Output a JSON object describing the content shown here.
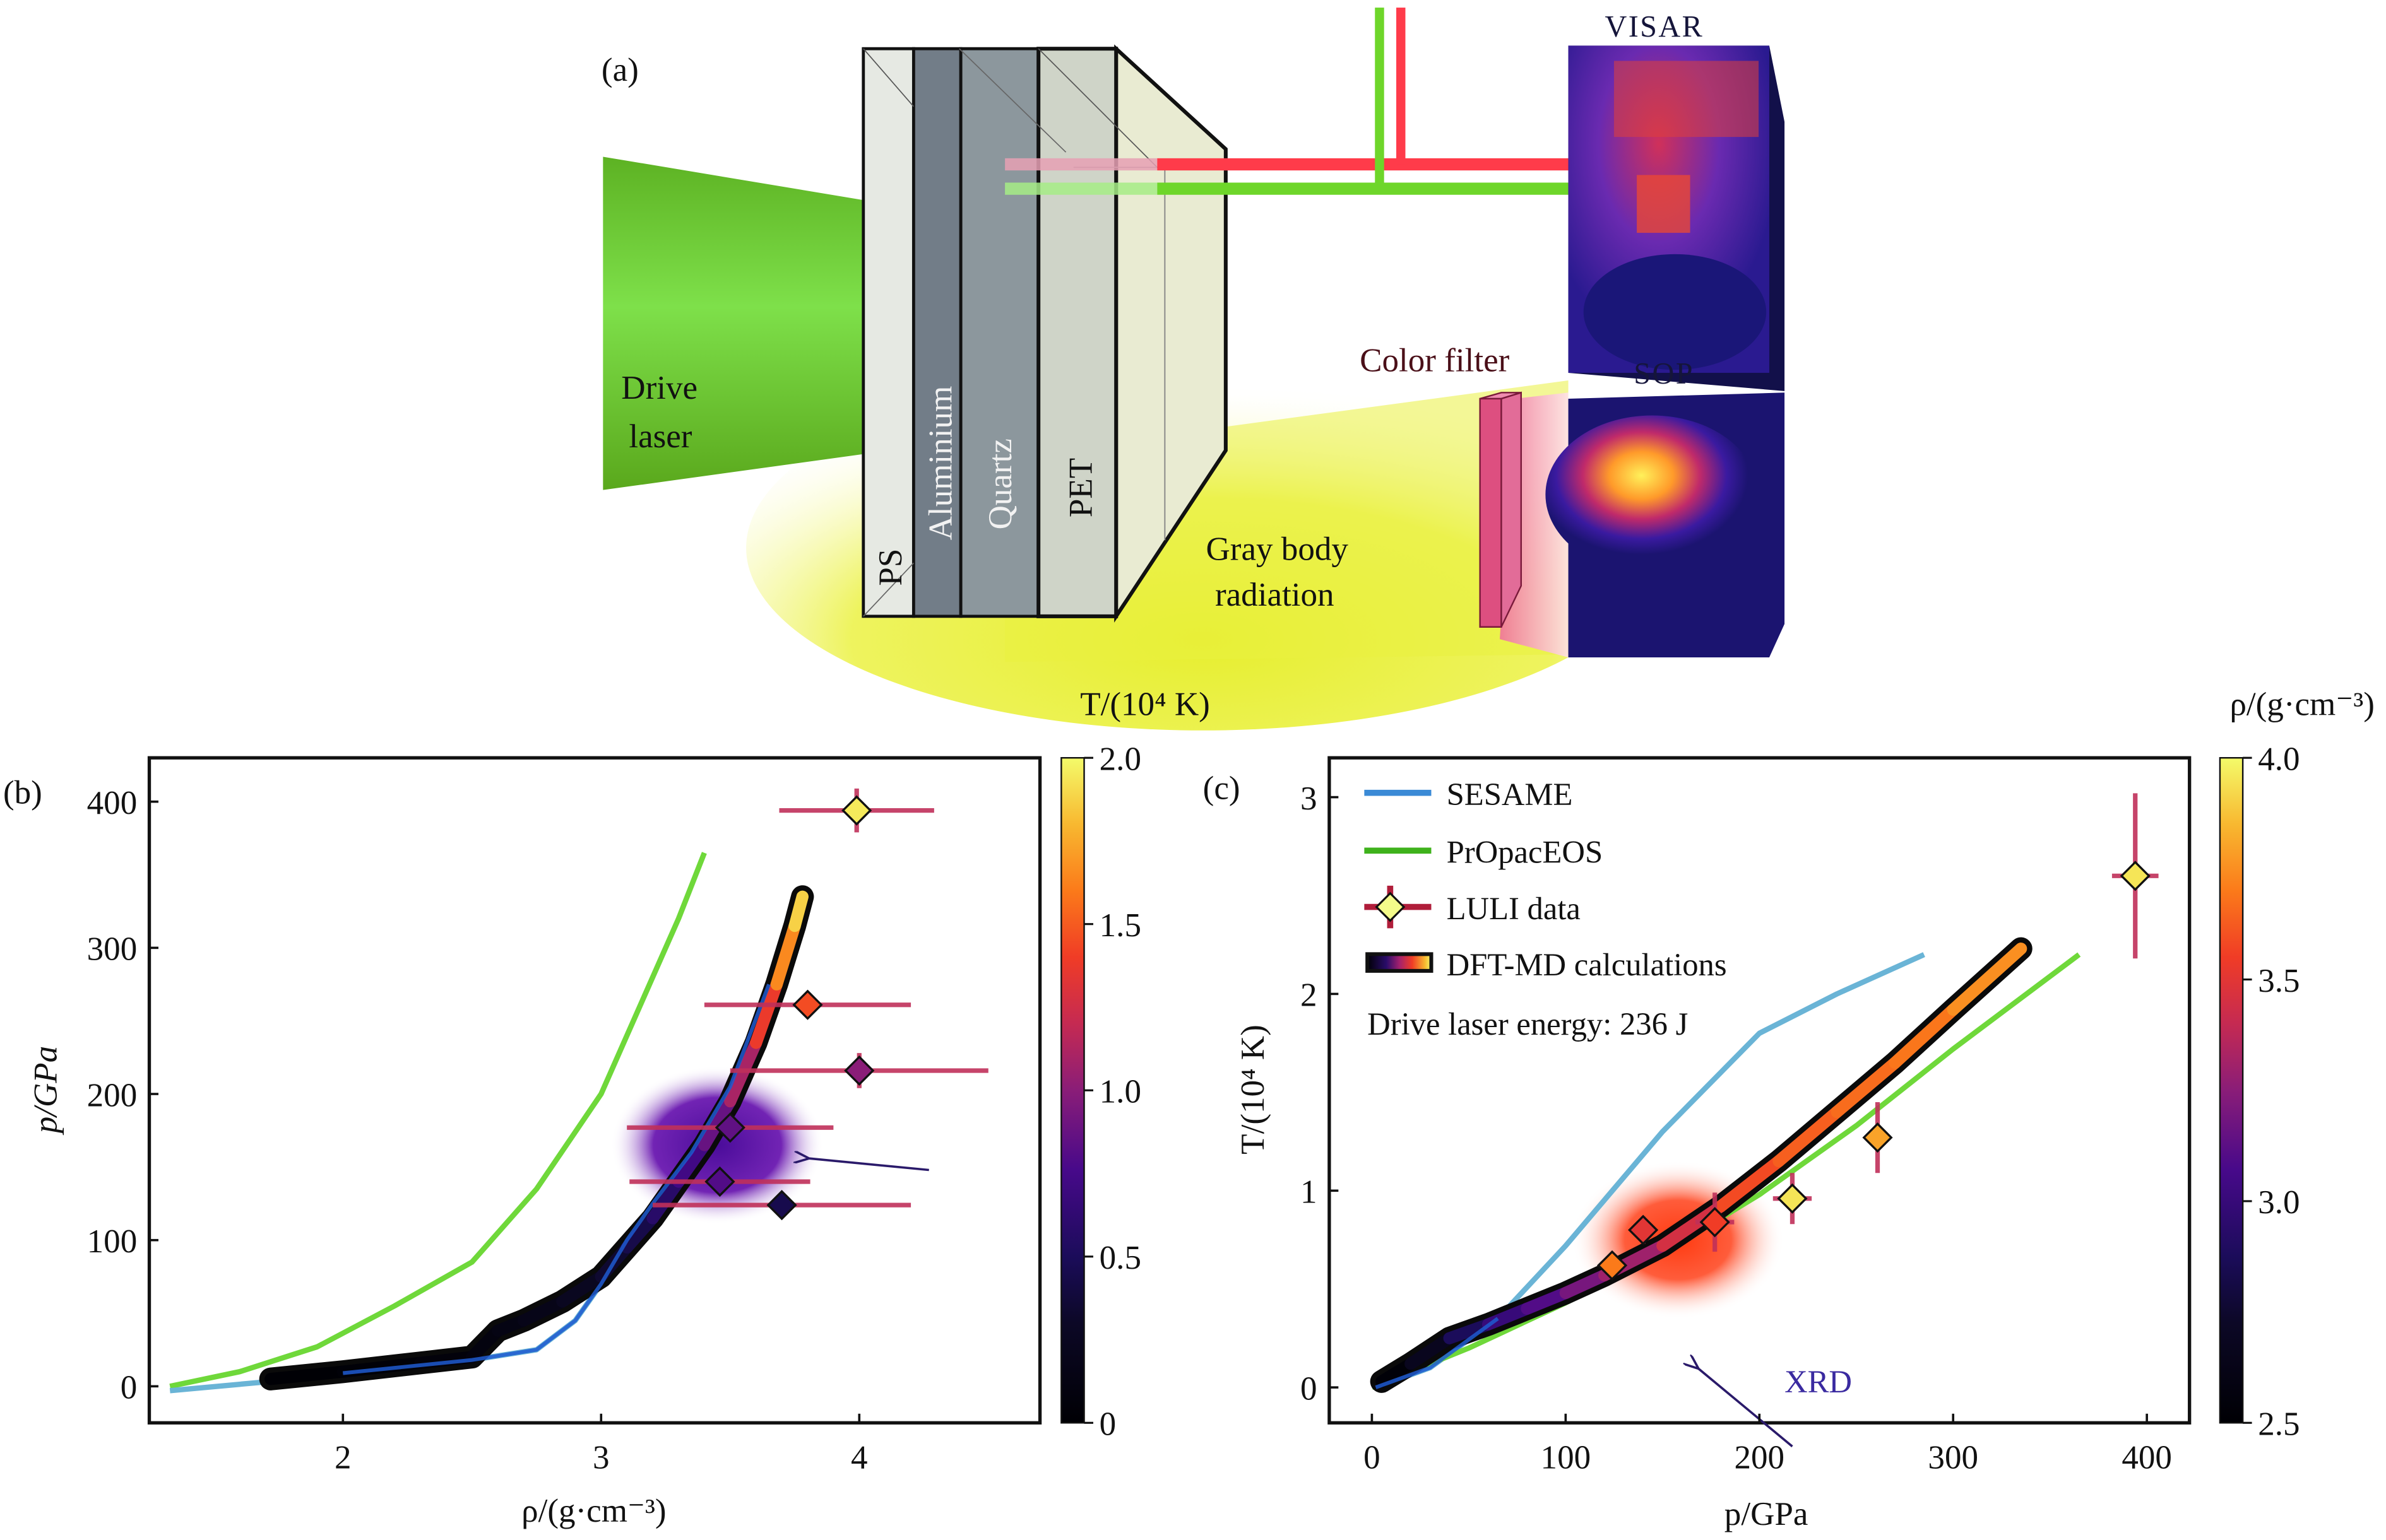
{
  "figure": {
    "panel_a": {
      "label": "(a)",
      "drive_laser_line1": "Drive",
      "drive_laser_line2": "laser",
      "layers": [
        "PS",
        "Aluminium",
        "Quartz",
        "PET"
      ],
      "gray_body_line1": "Gray body",
      "gray_body_line2": "radiation",
      "color_filter": "Color filter",
      "visar": "VISAR",
      "sop": "SOP",
      "colors": {
        "laser_green": "#6fcf3c",
        "probe_red": "#ff3b4a",
        "probe_green": "#6ed62a",
        "glow_yellow": "#e8ef3a",
        "filter_pink": "#e05585",
        "detector_bg": "#1b1470"
      }
    }
  },
  "chart_data": [
    {
      "id": "b",
      "panel_label": "(b)",
      "type": "line",
      "xlabel": "ρ/(g·cm⁻³)",
      "ylabel": "p/GPa",
      "xlim": [
        1.25,
        4.7
      ],
      "ylim": [
        -25,
        430
      ],
      "xticks": [
        2,
        3,
        4
      ],
      "yticks": [
        0,
        100,
        200,
        300,
        400
      ],
      "colorbar": {
        "label": "T/(10⁴ K)",
        "range": [
          0,
          2.0
        ],
        "ticks": [
          "0",
          "0.5",
          "1.0",
          "1.5",
          "2.0"
        ],
        "tick_values": [
          0,
          0.5,
          1.0,
          1.5,
          2.0
        ]
      },
      "series": [
        {
          "name": "PrOpacEOS",
          "color": "#6fd83a",
          "x": [
            1.33,
            1.6,
            1.9,
            2.2,
            2.5,
            2.75,
            3.0,
            3.15,
            3.3,
            3.4
          ],
          "y": [
            0,
            10,
            27,
            55,
            85,
            135,
            200,
            260,
            320,
            365
          ]
        },
        {
          "name": "SESAME",
          "color": "#6ab4d6",
          "x": [
            1.33,
            1.7,
            2.0,
            2.5,
            2.75,
            2.9,
            3.0,
            3.1,
            3.2,
            3.35,
            3.5,
            3.65
          ],
          "y": [
            -3,
            3,
            9,
            18,
            25,
            45,
            70,
            100,
            125,
            160,
            205,
            275
          ]
        },
        {
          "name": "DFT-MD calculations",
          "x": [
            1.72,
            2.0,
            2.3,
            2.5,
            2.6,
            2.7,
            2.85,
            3.0,
            3.1,
            3.2,
            3.3,
            3.4,
            3.5,
            3.6,
            3.68,
            3.75,
            3.78
          ],
          "y": [
            5,
            10,
            16,
            20,
            38,
            45,
            58,
            75,
            95,
            115,
            140,
            165,
            195,
            235,
            275,
            315,
            335
          ],
          "T": [
            0,
            0.02,
            0.05,
            0.08,
            0.12,
            0.15,
            0.2,
            0.3,
            0.38,
            0.5,
            0.65,
            0.8,
            0.95,
            1.25,
            1.5,
            1.8,
            1.95
          ]
        }
      ],
      "points": [
        {
          "x": 3.99,
          "y": 394,
          "xerr": [
            0.3,
            0.3
          ],
          "yerr": 15,
          "T": 1.95
        },
        {
          "x": 3.8,
          "y": 261,
          "xerr": [
            0.4,
            0.4
          ],
          "yerr": 0,
          "T": 1.45
        },
        {
          "x": 4.0,
          "y": 216,
          "xerr": [
            0.5,
            0.5
          ],
          "yerr": 12,
          "T": 1.0
        },
        {
          "x": 3.5,
          "y": 177,
          "xerr": [
            0.4,
            0.4
          ],
          "yerr": 0,
          "T": 0.85
        },
        {
          "x": 3.46,
          "y": 140,
          "xerr": [
            0.35,
            0.35
          ],
          "yerr": 0,
          "T": 0.8
        },
        {
          "x": 3.7,
          "y": 124,
          "xerr": [
            0.5,
            0.5
          ],
          "yerr": 0,
          "T": 0.45
        }
      ],
      "blob": {
        "x": 3.45,
        "y": 165,
        "color": "#5a12a8"
      },
      "arrow": {
        "from": [
          4.27,
          148
        ],
        "to": [
          3.8,
          156
        ]
      }
    },
    {
      "id": "c",
      "panel_label": "(c)",
      "type": "line",
      "xlabel": "p/GPa",
      "ylabel": "T/(10⁴ K)",
      "xlim": [
        -22,
        422
      ],
      "ylim": [
        -0.18,
        3.2
      ],
      "xticks": [
        0,
        100,
        200,
        300,
        400
      ],
      "yticks": [
        0,
        1,
        2,
        3
      ],
      "colorbar": {
        "label": "ρ/(g·cm⁻³)",
        "range": [
          2.5,
          4.0
        ],
        "ticks": [
          "2.5",
          "3.0",
          "3.5",
          "4.0"
        ],
        "tick_values": [
          2.5,
          3.0,
          3.5,
          4.0
        ]
      },
      "legend": {
        "position": "top-left",
        "items": [
          "SESAME",
          "PrOpacEOS",
          "LULI data",
          "DFT-MD calculations"
        ],
        "note": "Drive laser energy: 236 J"
      },
      "annotation": "XRD",
      "series": [
        {
          "name": "SESAME",
          "color": "#6ab4d6",
          "x": [
            2,
            30,
            65,
            100,
            150,
            200,
            240,
            285
          ],
          "y": [
            0,
            0.1,
            0.35,
            0.72,
            1.3,
            1.8,
            2.0,
            2.2
          ]
        },
        {
          "name": "PrOpacEOS",
          "color": "#6fd83a",
          "x": [
            0,
            50,
            100,
            150,
            200,
            250,
            300,
            365
          ],
          "y": [
            0,
            0.2,
            0.43,
            0.68,
            0.98,
            1.33,
            1.72,
            2.2
          ]
        },
        {
          "name": "DFT-MD calculations",
          "x": [
            5,
            20,
            40,
            60,
            80,
            100,
            120,
            150,
            180,
            210,
            240,
            270,
            300,
            335
          ],
          "y": [
            0.03,
            0.12,
            0.25,
            0.32,
            0.4,
            0.48,
            0.57,
            0.72,
            0.92,
            1.15,
            1.4,
            1.65,
            1.92,
            2.23
          ],
          "rho": [
            2.5,
            2.55,
            2.8,
            2.95,
            3.05,
            3.15,
            3.25,
            3.35,
            3.55,
            3.62,
            3.65,
            3.68,
            3.7,
            3.8
          ]
        }
      ],
      "points": [
        {
          "x": 394,
          "y": 2.6,
          "xerr": 12,
          "yerr": [
            0.42,
            0.42
          ],
          "rho": 3.95
        },
        {
          "x": 261,
          "y": 1.27,
          "xerr": 0,
          "yerr": [
            0.18,
            0.18
          ],
          "rho": 3.8
        },
        {
          "x": 217,
          "y": 0.96,
          "xerr": 10,
          "yerr": [
            0.13,
            0.13
          ],
          "rho": 3.95
        },
        {
          "x": 177,
          "y": 0.84,
          "xerr": 10,
          "yerr": [
            0.15,
            0.15
          ],
          "rho": 3.55
        },
        {
          "x": 140,
          "y": 0.8,
          "xerr": 0,
          "yerr": [
            0.07,
            0.07
          ],
          "rho": 3.5
        },
        {
          "x": 124,
          "y": 0.62,
          "xerr": 0,
          "yerr": [
            0,
            0
          ],
          "rho": 3.7
        }
      ],
      "blob": {
        "x": 158,
        "y": 0.75,
        "color": "#ff3c1f"
      },
      "arrow": {
        "from": [
          217,
          -0.3
        ],
        "to": [
          168,
          0.1
        ]
      }
    }
  ]
}
